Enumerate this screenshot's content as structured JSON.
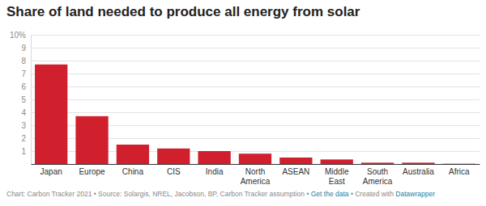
{
  "chart_data": {
    "type": "bar",
    "title": "Share of land needed to produce all energy from solar",
    "categories": [
      "Japan",
      "Europe",
      "China",
      "CIS",
      "India",
      "North America",
      "ASEAN",
      "Middle East",
      "South America",
      "Australia",
      "Africa"
    ],
    "values": [
      7.7,
      3.7,
      1.5,
      1.2,
      1.0,
      0.8,
      0.5,
      0.35,
      0.1,
      0.1,
      0.02
    ],
    "color": "#d0202e",
    "ylim": [
      0,
      10
    ],
    "yticks": [
      1,
      2,
      3,
      4,
      5,
      6,
      7,
      8,
      9,
      {
        "value": 10,
        "label": "10%"
      }
    ],
    "grid": true,
    "footer": [
      "Chart: Carbon Tracker 2021 • Source: Solargis, NREL, Jacobson, BP, Carbon Tracker assumption • ",
      "Get the data",
      " • Created with ",
      "Datawrapper"
    ]
  }
}
